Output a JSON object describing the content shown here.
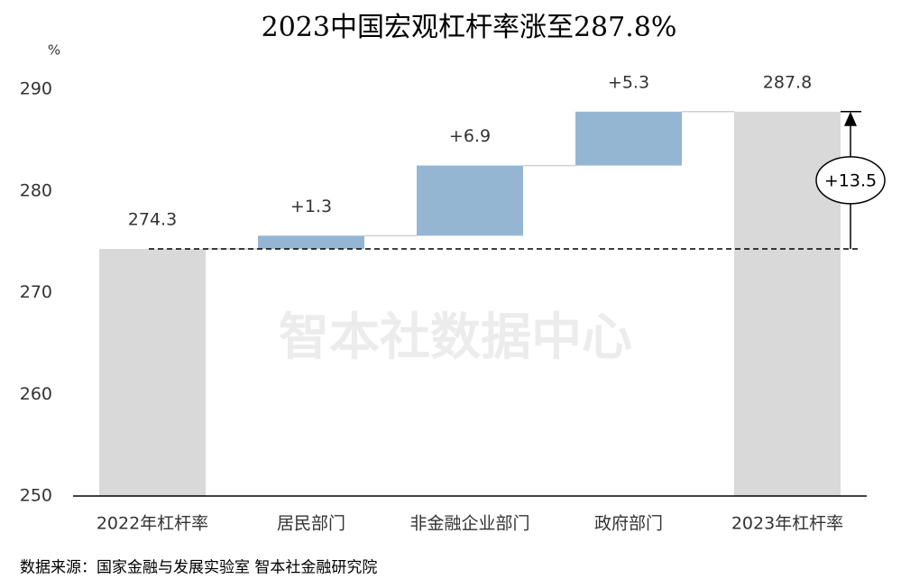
{
  "chart_data": {
    "type": "waterfall",
    "title": "2023中国宏观杠杆率涨至287.8%",
    "y_unit": "%",
    "categories": [
      "2022年杠杆率",
      "居民部门",
      "非金融企业部门",
      "政府部门",
      "2023年杠杆率"
    ],
    "values": [
      274.3,
      1.3,
      6.9,
      5.3,
      287.8
    ],
    "value_labels": [
      "274.3",
      "+1.3",
      "+6.9",
      "+5.3",
      "287.8"
    ],
    "measures": [
      "total",
      "relative",
      "relative",
      "relative",
      "total"
    ],
    "total_color": "#d9d9d9",
    "increase_color": "#95b6d3",
    "ylim": [
      250,
      290
    ],
    "yticks": [
      250,
      260,
      270,
      280,
      290
    ],
    "grid": false,
    "annotation": "+13.5",
    "watermark": "智本社数据中心",
    "source": "数据来源：国家金融与发展实验室 智本社金融研究院"
  }
}
